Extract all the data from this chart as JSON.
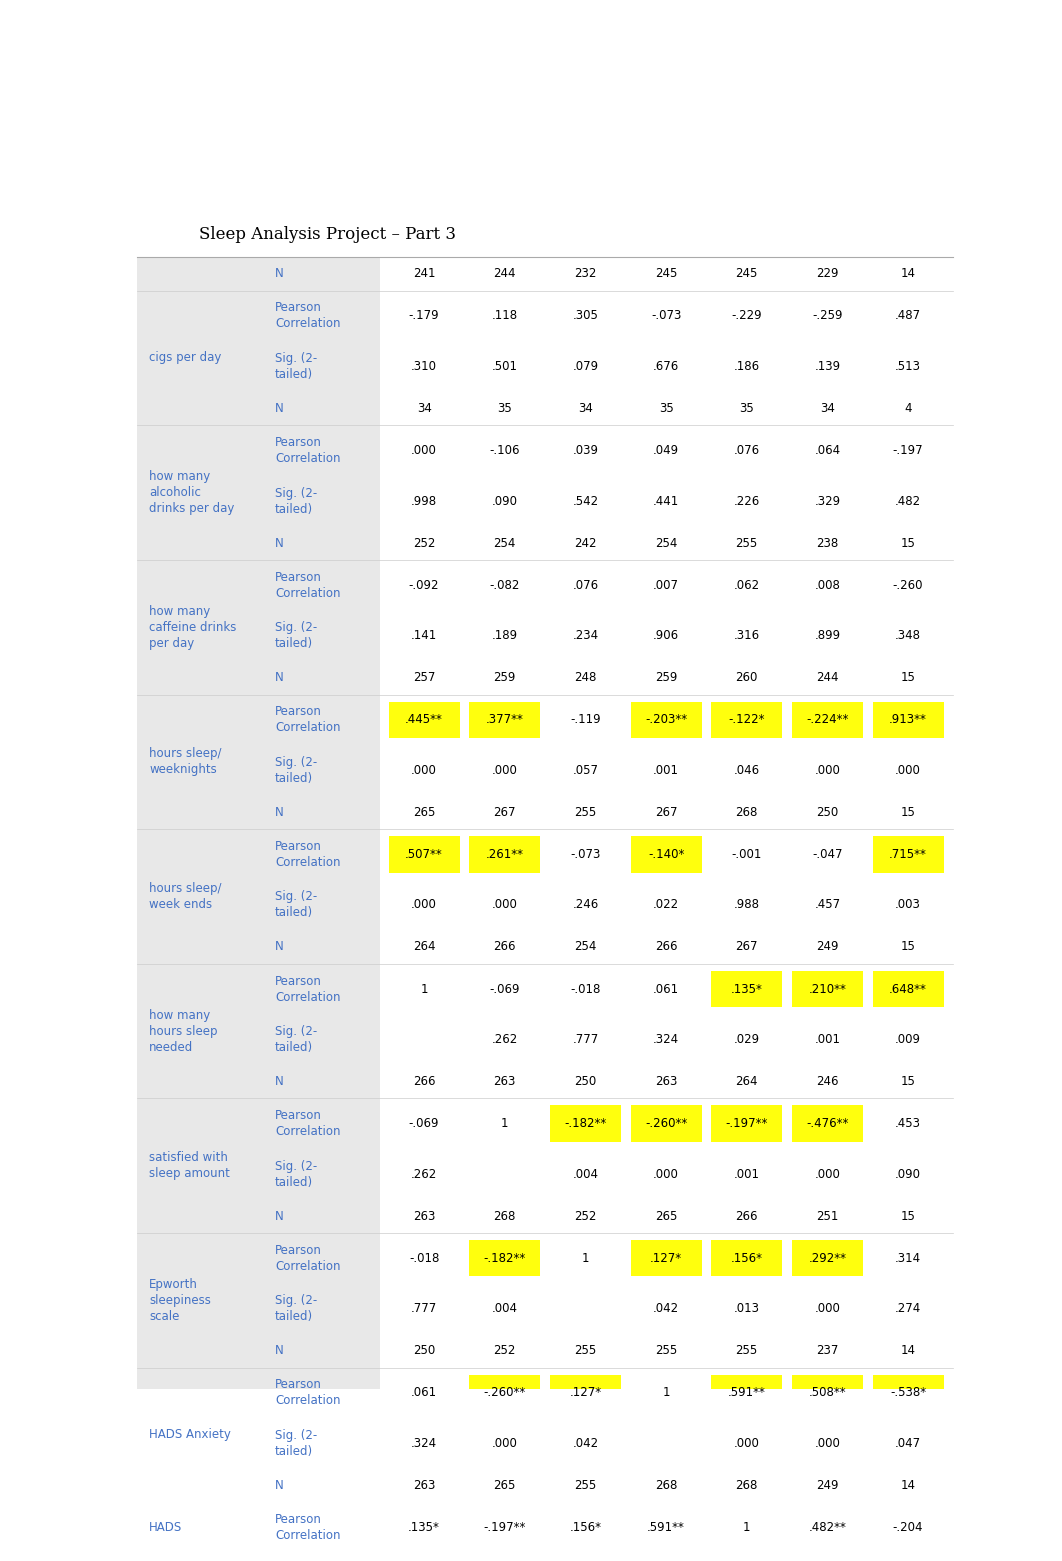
{
  "title": "Sleep Analysis Project – Part 3",
  "title_fontsize": 12,
  "bg_color": "#e8e8e8",
  "text_color": "#4472c4",
  "highlight_color": "#ffff00",
  "row_groups": [
    {
      "label": "",
      "subrows": [
        {
          "type": "N",
          "values": [
            "241",
            "244",
            "232",
            "245",
            "245",
            "229",
            "14"
          ],
          "highlights": [
            false,
            false,
            false,
            false,
            false,
            false,
            false
          ]
        }
      ]
    },
    {
      "label": "cigs per day",
      "subrows": [
        {
          "type": "Pearson\nCorrelation",
          "values": [
            "-.179",
            ".118",
            ".305",
            "-.073",
            "-.229",
            "-.259",
            ".487"
          ],
          "highlights": [
            false,
            false,
            false,
            false,
            false,
            false,
            false
          ]
        },
        {
          "type": "Sig. (2-\ntailed)",
          "values": [
            ".310",
            ".501",
            ".079",
            ".676",
            ".186",
            ".139",
            ".513"
          ],
          "highlights": [
            false,
            false,
            false,
            false,
            false,
            false,
            false
          ]
        },
        {
          "type": "N",
          "values": [
            "34",
            "35",
            "34",
            "35",
            "35",
            "34",
            "4"
          ],
          "highlights": [
            false,
            false,
            false,
            false,
            false,
            false,
            false
          ]
        }
      ]
    },
    {
      "label": "how many\nalcoholic\ndrinks per day",
      "subrows": [
        {
          "type": "Pearson\nCorrelation",
          "values": [
            ".000",
            "-.106",
            ".039",
            ".049",
            ".076",
            ".064",
            "-.197"
          ],
          "highlights": [
            false,
            false,
            false,
            false,
            false,
            false,
            false
          ]
        },
        {
          "type": "Sig. (2-\ntailed)",
          "values": [
            ".998",
            ".090",
            ".542",
            ".441",
            ".226",
            ".329",
            ".482"
          ],
          "highlights": [
            false,
            false,
            false,
            false,
            false,
            false,
            false
          ]
        },
        {
          "type": "N",
          "values": [
            "252",
            "254",
            "242",
            "254",
            "255",
            "238",
            "15"
          ],
          "highlights": [
            false,
            false,
            false,
            false,
            false,
            false,
            false
          ]
        }
      ]
    },
    {
      "label": "how many\ncaffeine drinks\nper day",
      "subrows": [
        {
          "type": "Pearson\nCorrelation",
          "values": [
            "-.092",
            "-.082",
            ".076",
            ".007",
            ".062",
            ".008",
            "-.260"
          ],
          "highlights": [
            false,
            false,
            false,
            false,
            false,
            false,
            false
          ]
        },
        {
          "type": "Sig. (2-\ntailed)",
          "values": [
            ".141",
            ".189",
            ".234",
            ".906",
            ".316",
            ".899",
            ".348"
          ],
          "highlights": [
            false,
            false,
            false,
            false,
            false,
            false,
            false
          ]
        },
        {
          "type": "N",
          "values": [
            "257",
            "259",
            "248",
            "259",
            "260",
            "244",
            "15"
          ],
          "highlights": [
            false,
            false,
            false,
            false,
            false,
            false,
            false
          ]
        }
      ]
    },
    {
      "label": "hours sleep/\nweeknights",
      "subrows": [
        {
          "type": "Pearson\nCorrelation",
          "values": [
            ".445**",
            ".377**",
            "-.119",
            "-.203**",
            "-.122*",
            "-.224**",
            ".913**"
          ],
          "highlights": [
            true,
            true,
            false,
            true,
            true,
            true,
            true
          ]
        },
        {
          "type": "Sig. (2-\ntailed)",
          "values": [
            ".000",
            ".000",
            ".057",
            ".001",
            ".046",
            ".000",
            ".000"
          ],
          "highlights": [
            false,
            false,
            false,
            false,
            false,
            false,
            false
          ]
        },
        {
          "type": "N",
          "values": [
            "265",
            "267",
            "255",
            "267",
            "268",
            "250",
            "15"
          ],
          "highlights": [
            false,
            false,
            false,
            false,
            false,
            false,
            false
          ]
        }
      ]
    },
    {
      "label": "hours sleep/\nweek ends",
      "subrows": [
        {
          "type": "Pearson\nCorrelation",
          "values": [
            ".507**",
            ".261**",
            "-.073",
            "-.140*",
            "-.001",
            "-.047",
            ".715**"
          ],
          "highlights": [
            true,
            true,
            false,
            true,
            false,
            false,
            true
          ]
        },
        {
          "type": "Sig. (2-\ntailed)",
          "values": [
            ".000",
            ".000",
            ".246",
            ".022",
            ".988",
            ".457",
            ".003"
          ],
          "highlights": [
            false,
            false,
            false,
            false,
            false,
            false,
            false
          ]
        },
        {
          "type": "N",
          "values": [
            "264",
            "266",
            "254",
            "266",
            "267",
            "249",
            "15"
          ],
          "highlights": [
            false,
            false,
            false,
            false,
            false,
            false,
            false
          ]
        }
      ]
    },
    {
      "label": "how many\nhours sleep\nneeded",
      "subrows": [
        {
          "type": "Pearson\nCorrelation",
          "values": [
            "1",
            "-.069",
            "-.018",
            ".061",
            ".135*",
            ".210**",
            ".648**"
          ],
          "highlights": [
            false,
            false,
            false,
            false,
            true,
            true,
            true
          ]
        },
        {
          "type": "Sig. (2-\ntailed)",
          "values": [
            "",
            ".262",
            ".777",
            ".324",
            ".029",
            ".001",
            ".009"
          ],
          "highlights": [
            false,
            false,
            false,
            false,
            false,
            false,
            false
          ]
        },
        {
          "type": "N",
          "values": [
            "266",
            "263",
            "250",
            "263",
            "264",
            "246",
            "15"
          ],
          "highlights": [
            false,
            false,
            false,
            false,
            false,
            false,
            false
          ]
        }
      ]
    },
    {
      "label": "satisfied with\nsleep amount",
      "subrows": [
        {
          "type": "Pearson\nCorrelation",
          "values": [
            "-.069",
            "1",
            "-.182**",
            "-.260**",
            "-.197**",
            "-.476**",
            ".453"
          ],
          "highlights": [
            false,
            false,
            true,
            true,
            true,
            true,
            false
          ]
        },
        {
          "type": "Sig. (2-\ntailed)",
          "values": [
            ".262",
            "",
            ".004",
            ".000",
            ".001",
            ".000",
            ".090"
          ],
          "highlights": [
            false,
            false,
            false,
            false,
            false,
            false,
            false
          ]
        },
        {
          "type": "N",
          "values": [
            "263",
            "268",
            "252",
            "265",
            "266",
            "251",
            "15"
          ],
          "highlights": [
            false,
            false,
            false,
            false,
            false,
            false,
            false
          ]
        }
      ]
    },
    {
      "label": "Epworth\nsleepiness\nscale",
      "subrows": [
        {
          "type": "Pearson\nCorrelation",
          "values": [
            "-.018",
            "-.182**",
            "1",
            ".127*",
            ".156*",
            ".292**",
            ".314"
          ],
          "highlights": [
            false,
            true,
            false,
            true,
            true,
            true,
            false
          ]
        },
        {
          "type": "Sig. (2-\ntailed)",
          "values": [
            ".777",
            ".004",
            "",
            ".042",
            ".013",
            ".000",
            ".274"
          ],
          "highlights": [
            false,
            false,
            false,
            false,
            false,
            false,
            false
          ]
        },
        {
          "type": "N",
          "values": [
            "250",
            "252",
            "255",
            "255",
            "255",
            "237",
            "14"
          ],
          "highlights": [
            false,
            false,
            false,
            false,
            false,
            false,
            false
          ]
        }
      ]
    },
    {
      "label": "HADS Anxiety",
      "subrows": [
        {
          "type": "Pearson\nCorrelation",
          "values": [
            ".061",
            "-.260**",
            ".127*",
            "1",
            ".591**",
            ".508**",
            "-.538*"
          ],
          "highlights": [
            false,
            true,
            true,
            false,
            true,
            true,
            true
          ]
        },
        {
          "type": "Sig. (2-\ntailed)",
          "values": [
            ".324",
            ".000",
            ".042",
            "",
            ".000",
            ".000",
            ".047"
          ],
          "highlights": [
            false,
            false,
            false,
            false,
            false,
            false,
            false
          ]
        },
        {
          "type": "N",
          "values": [
            "263",
            "265",
            "255",
            "268",
            "268",
            "249",
            "14"
          ],
          "highlights": [
            false,
            false,
            false,
            false,
            false,
            false,
            false
          ]
        }
      ]
    },
    {
      "label": "HADS",
      "subrows": [
        {
          "type": "Pearson\nCorrelation",
          "values": [
            ".135*",
            "-.197**",
            ".156*",
            ".591**",
            "1",
            ".482**",
            "-.204"
          ],
          "highlights": [
            true,
            true,
            true,
            true,
            false,
            true,
            false
          ]
        }
      ]
    }
  ]
}
